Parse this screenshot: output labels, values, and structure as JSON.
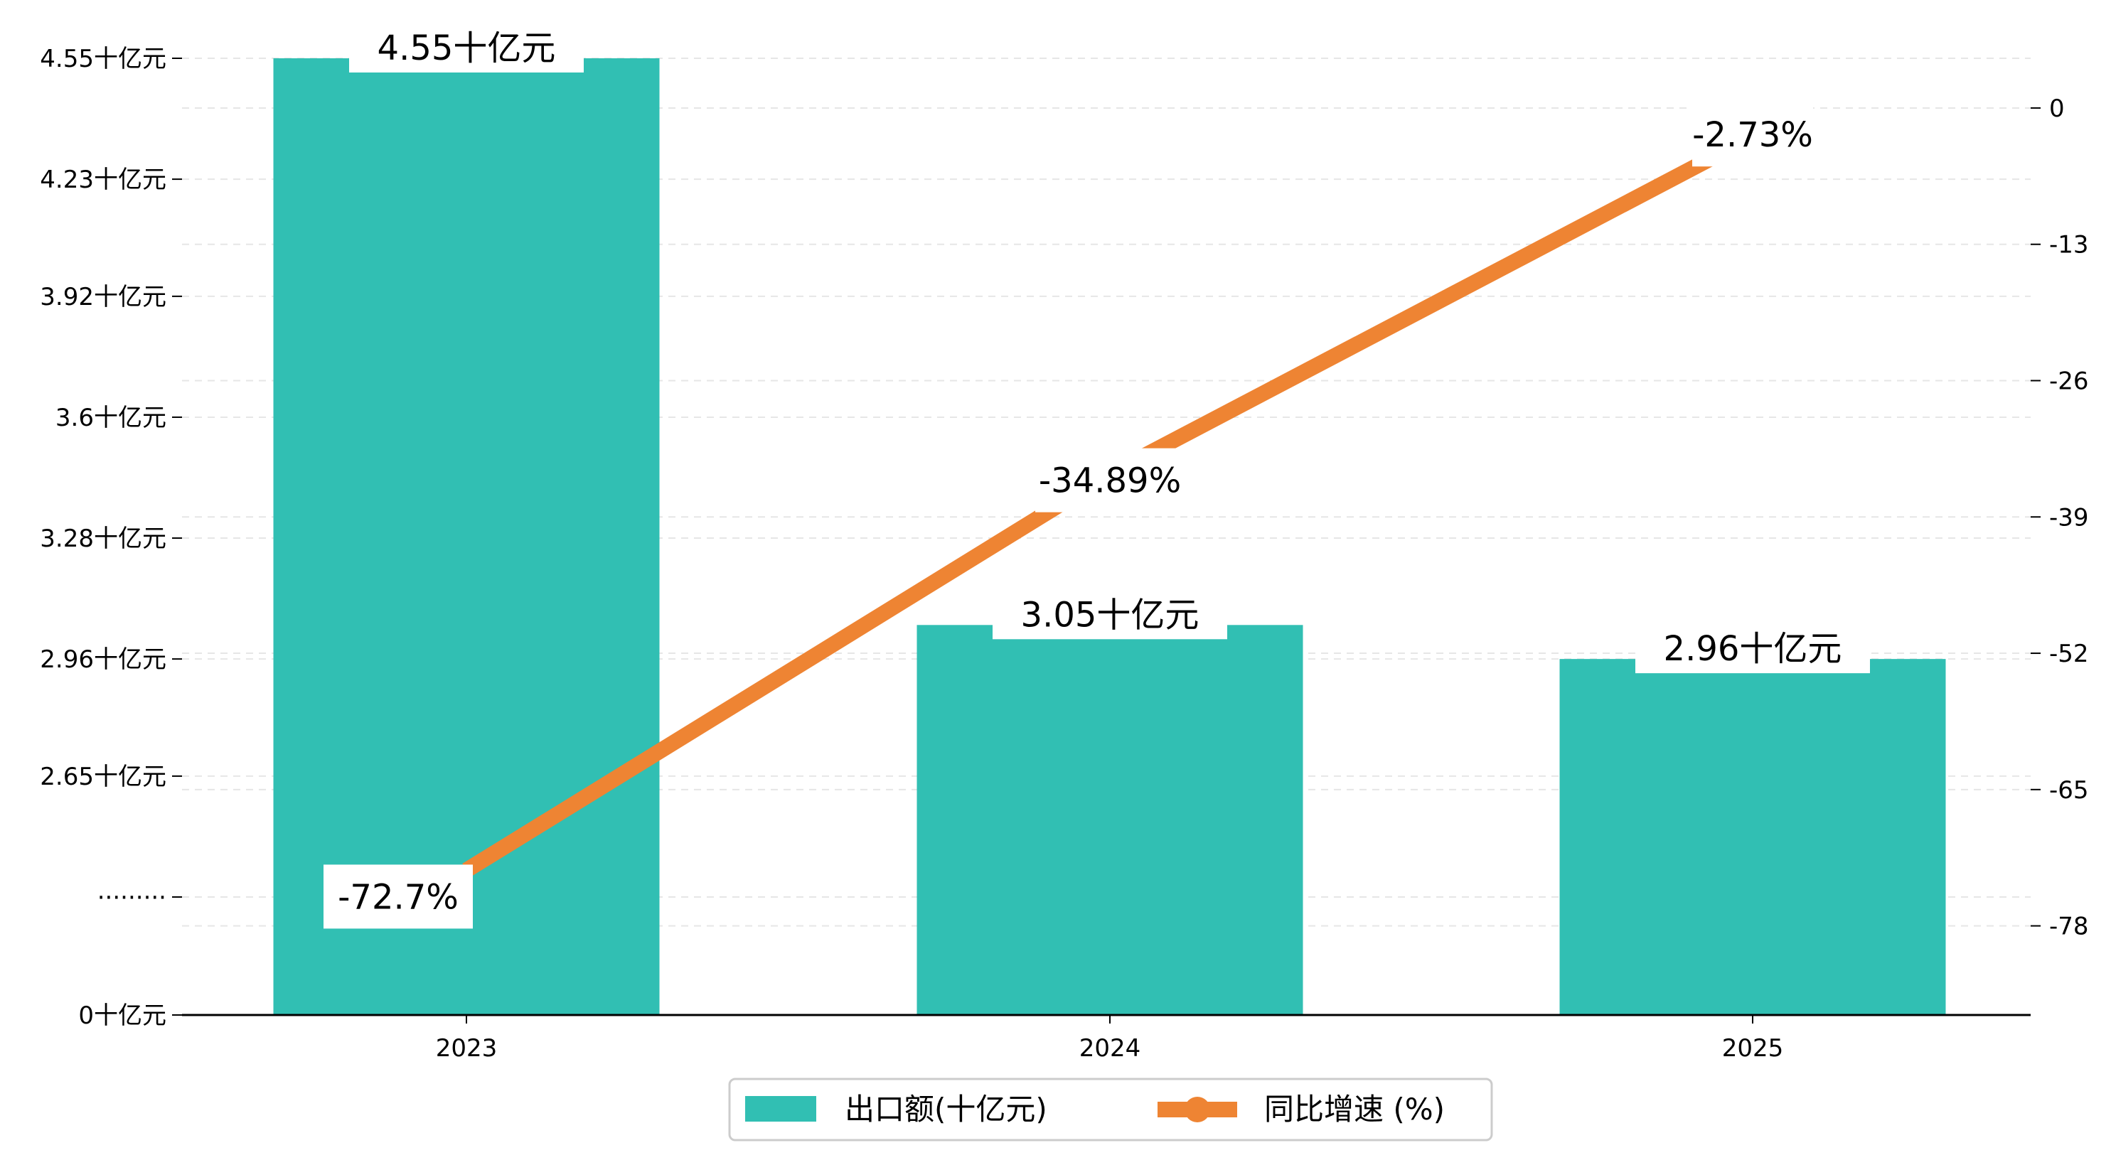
{
  "chart_data": {
    "type": "bar+line",
    "categories": [
      "2023",
      "2024",
      "2025"
    ],
    "series": [
      {
        "name": "出口额(十亿元)",
        "type": "bar",
        "axis": "left",
        "values": [
          4.55,
          3.05,
          2.96
        ],
        "labels": [
          "4.55十亿元",
          "3.05十亿元",
          "2.96十亿元"
        ],
        "color": "#31BFB3"
      },
      {
        "name": "同比增速 (%)",
        "type": "line",
        "axis": "right",
        "values": [
          -72.7,
          -34.89,
          -2.73
        ],
        "labels": [
          "-72.7%",
          "-34.89%",
          "-2.73%"
        ],
        "color": "#EE8433"
      }
    ],
    "left_axis": {
      "ticks": [
        {
          "value": 0,
          "label": "0十亿元"
        },
        {
          "value": 2.33,
          "label": "·········"
        },
        {
          "value": 2.65,
          "label": "2.65十亿元"
        },
        {
          "value": 2.96,
          "label": "2.96十亿元"
        },
        {
          "value": 3.28,
          "label": "3.28十亿元"
        },
        {
          "value": 3.6,
          "label": "3.6十亿元"
        },
        {
          "value": 3.92,
          "label": "3.92十亿元"
        },
        {
          "value": 4.23,
          "label": "4.23十亿元"
        },
        {
          "value": 4.55,
          "label": "4.55十亿元"
        }
      ],
      "note": "broken axis: 0 at bottom, 2.33 to 4.55 linear above the break"
    },
    "right_axis": {
      "ticks": [
        {
          "value": 0,
          "label": "0"
        },
        {
          "value": -13,
          "label": "-13"
        },
        {
          "value": -26,
          "label": "-26"
        },
        {
          "value": -39,
          "label": "-39"
        },
        {
          "value": -52,
          "label": "-52"
        },
        {
          "value": -65,
          "label": "-65"
        },
        {
          "value": -78,
          "label": "-78"
        }
      ],
      "range": [
        -86.5,
        10.3
      ]
    },
    "grid": true,
    "legend_position": "bottom-center",
    "colors": {
      "bar": "#31BFB3",
      "line": "#EE8433",
      "grid": "#e6e6e6"
    }
  }
}
